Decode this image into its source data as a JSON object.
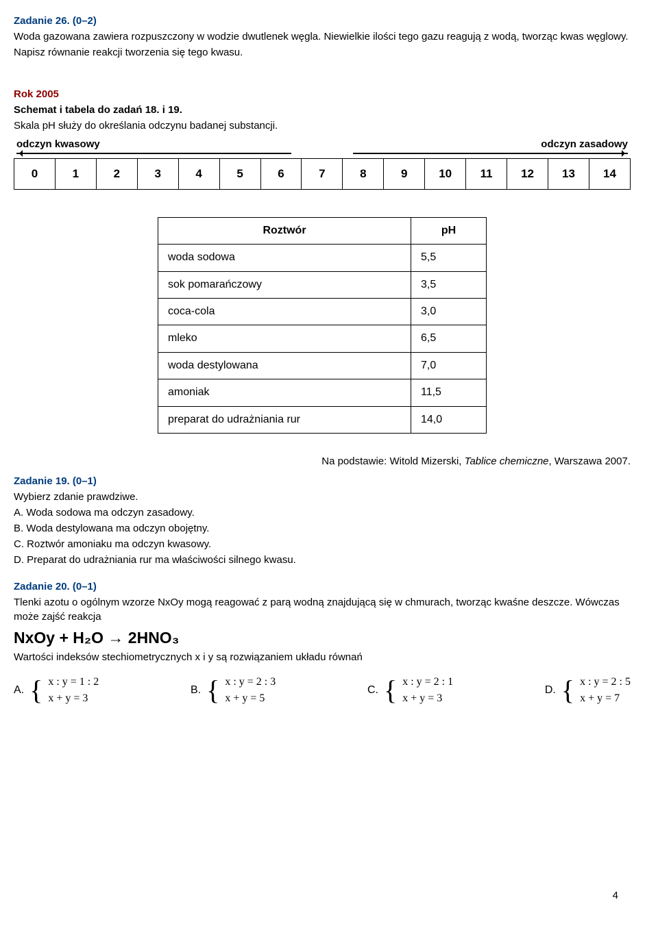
{
  "task26": {
    "title": "Zadanie 26. (0–2)",
    "p1": "Woda gazowana zawiera rozpuszczony w wodzie dwutlenek węgla. Niewielkie ilości tego gazu reagują z wodą, tworząc kwas węglowy.",
    "p2": "Napisz równanie reakcji tworzenia się tego kwasu."
  },
  "rok2005": {
    "title": "Rok 2005",
    "line1a": "Schemat i tabela do zadań 18. i 19.",
    "line2": "Skala pH służy do określania odczynu badanej substancji.",
    "label_left": "odczyn kwasowy",
    "label_right": "odczyn zasadowy",
    "ph_values": [
      "0",
      "1",
      "2",
      "3",
      "4",
      "5",
      "6",
      "7",
      "8",
      "9",
      "10",
      "11",
      "12",
      "13",
      "14"
    ]
  },
  "roztwor_table": {
    "col1": "Roztwór",
    "col2": "pH",
    "rows": [
      [
        "woda sodowa",
        "5,5"
      ],
      [
        "sok pomarańczowy",
        "3,5"
      ],
      [
        "coca-cola",
        "3,0"
      ],
      [
        "mleko",
        "6,5"
      ],
      [
        "woda destylowana",
        "7,0"
      ],
      [
        "amoniak",
        "11,5"
      ],
      [
        "preparat do udrażniania rur",
        "14,0"
      ]
    ]
  },
  "source": {
    "prefix": "Na podstawie: Witold Mizerski, ",
    "italic": "Tablice chemiczne",
    "suffix": ", Warszawa 2007."
  },
  "task19": {
    "title": "Zadanie 19. (0–1)",
    "intro": "Wybierz zdanie prawdziwe.",
    "A": "A. Woda sodowa ma odczyn zasadowy.",
    "B": "B. Woda destylowana ma odczyn obojętny.",
    "C": "C. Roztwór amoniaku ma odczyn kwasowy.",
    "D": "D. Preparat do udrażniania rur ma właściwości silnego kwasu."
  },
  "task20": {
    "title": "Zadanie 20. (0–1)",
    "p1": "Tlenki azotu o ogólnym wzorze NxOy mogą reagować z parą wodną znajdującą się w chmurach, tworząc kwaśne deszcze. Wówczas może zajść reakcja",
    "formula": "NxOy + H₂O → 2HNO₃",
    "p2": "Wartości indeksów stechiometrycznych x i y są rozwiązaniem układu równań",
    "answers": {
      "A": {
        "label": "A.",
        "eq1": "x : y = 1 : 2",
        "eq2": "x + y = 3"
      },
      "B": {
        "label": "B.",
        "eq1": "x : y = 2 : 3",
        "eq2": "x + y = 5"
      },
      "C": {
        "label": "C.",
        "eq1": "x : y = 2 : 1",
        "eq2": "x + y = 3"
      },
      "D": {
        "label": "D.",
        "eq1": "x : y = 2 : 5",
        "eq2": "x + y = 7"
      }
    }
  },
  "page_num": "4"
}
